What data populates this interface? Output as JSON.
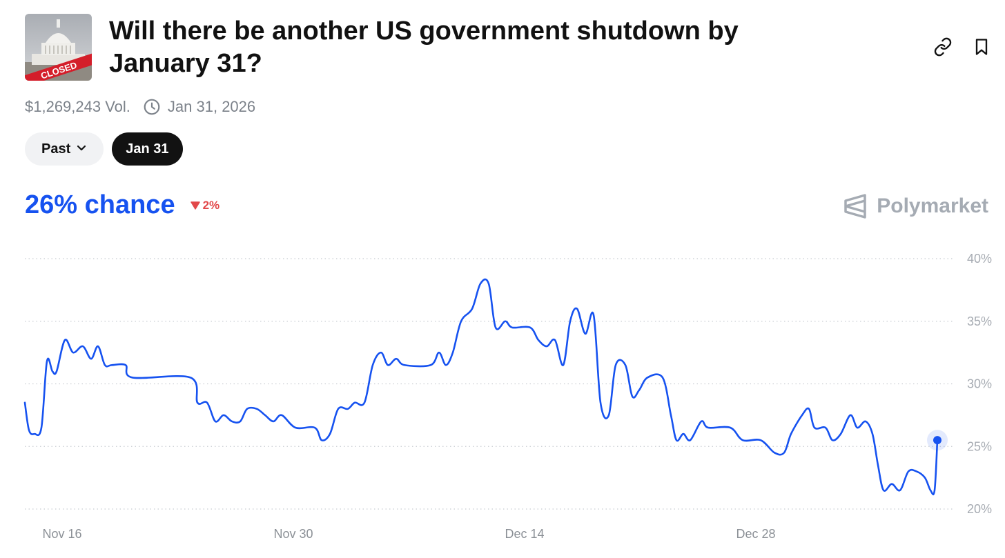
{
  "header": {
    "thumbnail_label": "CLOSED",
    "title": "Will there be another US government shutdown by January 31?"
  },
  "meta": {
    "volume": "$1,269,243 Vol.",
    "end_date": "Jan 31, 2026"
  },
  "pills": {
    "past_label": "Past",
    "date_label": "Jan 31"
  },
  "odds": {
    "chance_text": "26% chance",
    "delta_text": "2%",
    "delta_direction": "down"
  },
  "brand": {
    "name": "Polymarket"
  },
  "colors": {
    "accent": "#1652f0",
    "down": "#e2484a",
    "muted": "#7c828a"
  },
  "icons": {
    "link": "link-icon",
    "bookmark": "bookmark-icon",
    "clock": "clock-icon",
    "chevron": "chevron-down-icon",
    "triangle": "triangle-down-icon",
    "brand": "polymarket-logo-icon"
  },
  "chart_data": {
    "type": "line",
    "x_tick_labels": [
      "Nov 16",
      "Nov 30",
      "Dec 14",
      "Dec 28"
    ],
    "y_tick_labels": [
      "40%",
      "35%",
      "30%",
      "25%",
      "20%"
    ],
    "ylim": [
      20,
      40
    ],
    "xlim": [
      0,
      1326
    ],
    "x_ticks": [
      54,
      389,
      724,
      1059
    ],
    "y_ticks": [
      40,
      35,
      30,
      25,
      20
    ],
    "grid": true,
    "series": [
      {
        "values": [
          [
            0,
            28.5
          ],
          [
            6,
            26.3
          ],
          [
            14,
            26.0
          ],
          [
            24,
            26.5
          ],
          [
            32,
            31.8
          ],
          [
            40,
            31.0
          ],
          [
            46,
            31.0
          ],
          [
            58,
            33.5
          ],
          [
            70,
            32.5
          ],
          [
            84,
            33.0
          ],
          [
            96,
            32.0
          ],
          [
            106,
            33.0
          ],
          [
            116,
            31.5
          ],
          [
            126,
            31.5
          ],
          [
            146,
            31.5
          ],
          [
            156,
            30.5
          ],
          [
            240,
            30.5
          ],
          [
            250,
            28.5
          ],
          [
            264,
            28.5
          ],
          [
            276,
            27.0
          ],
          [
            288,
            27.5
          ],
          [
            300,
            27.0
          ],
          [
            312,
            27.0
          ],
          [
            322,
            28.0
          ],
          [
            336,
            28.0
          ],
          [
            348,
            27.5
          ],
          [
            360,
            27.0
          ],
          [
            372,
            27.5
          ],
          [
            392,
            26.5
          ],
          [
            420,
            26.5
          ],
          [
            430,
            25.5
          ],
          [
            442,
            26.0
          ],
          [
            454,
            28.0
          ],
          [
            468,
            28.0
          ],
          [
            478,
            28.5
          ],
          [
            492,
            28.5
          ],
          [
            504,
            31.5
          ],
          [
            516,
            32.5
          ],
          [
            526,
            31.5
          ],
          [
            538,
            32.0
          ],
          [
            550,
            31.5
          ],
          [
            588,
            31.5
          ],
          [
            600,
            32.5
          ],
          [
            610,
            31.5
          ],
          [
            620,
            32.5
          ],
          [
            632,
            35.0
          ],
          [
            648,
            36.0
          ],
          [
            660,
            38.0
          ],
          [
            672,
            38.0
          ],
          [
            682,
            34.5
          ],
          [
            696,
            35.0
          ],
          [
            706,
            34.5
          ],
          [
            732,
            34.5
          ],
          [
            744,
            33.5
          ],
          [
            756,
            33.0
          ],
          [
            768,
            33.5
          ],
          [
            780,
            31.5
          ],
          [
            790,
            35.0
          ],
          [
            800,
            36.0
          ],
          [
            812,
            34.0
          ],
          [
            824,
            35.5
          ],
          [
            834,
            28.5
          ],
          [
            846,
            27.5
          ],
          [
            856,
            31.5
          ],
          [
            870,
            31.5
          ],
          [
            880,
            29.0
          ],
          [
            890,
            29.5
          ],
          [
            902,
            30.5
          ],
          [
            924,
            30.5
          ],
          [
            936,
            27.5
          ],
          [
            944,
            25.5
          ],
          [
            954,
            26.0
          ],
          [
            964,
            25.5
          ],
          [
            980,
            27.0
          ],
          [
            990,
            26.5
          ],
          [
            1022,
            26.5
          ],
          [
            1040,
            25.5
          ],
          [
            1066,
            25.5
          ],
          [
            1086,
            24.5
          ],
          [
            1100,
            24.5
          ],
          [
            1110,
            26.0
          ],
          [
            1126,
            27.5
          ],
          [
            1136,
            28.0
          ],
          [
            1144,
            26.5
          ],
          [
            1160,
            26.5
          ],
          [
            1170,
            25.5
          ],
          [
            1182,
            26.0
          ],
          [
            1196,
            27.5
          ],
          [
            1206,
            26.5
          ],
          [
            1218,
            27.0
          ],
          [
            1228,
            26.0
          ],
          [
            1236,
            23.5
          ],
          [
            1244,
            21.5
          ],
          [
            1256,
            22.0
          ],
          [
            1268,
            21.5
          ],
          [
            1280,
            23.0
          ],
          [
            1292,
            23.0
          ],
          [
            1304,
            22.5
          ],
          [
            1312,
            21.5
          ],
          [
            1318,
            21.5
          ],
          [
            1322,
            25.5
          ]
        ]
      }
    ]
  }
}
